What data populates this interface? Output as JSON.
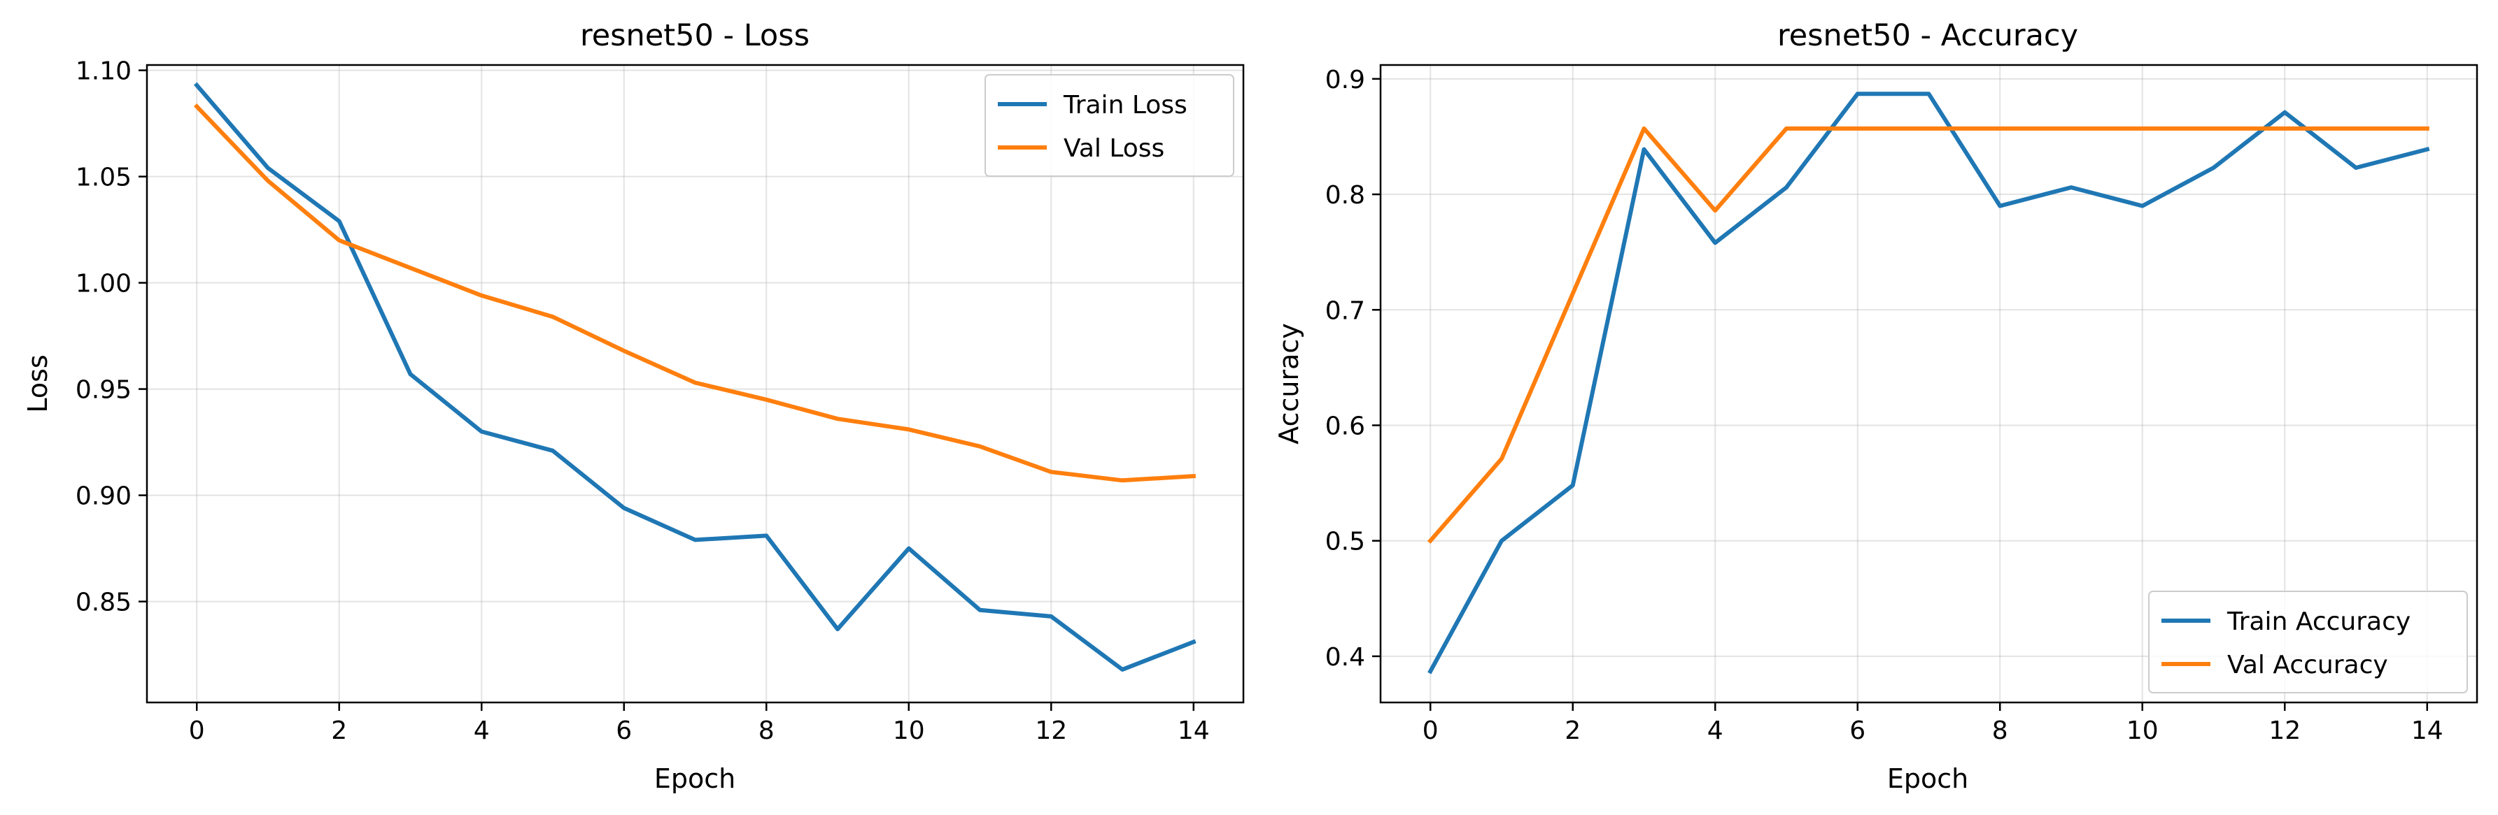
{
  "chart_data": [
    {
      "type": "line",
      "title": "resnet50 - Loss",
      "xlabel": "Epoch",
      "ylabel": "Loss",
      "x": [
        0,
        1,
        2,
        3,
        4,
        5,
        6,
        7,
        8,
        9,
        10,
        11,
        12,
        13,
        14
      ],
      "xlim": [
        -0.7,
        14.7
      ],
      "ylim": [
        0.8025,
        1.1025
      ],
      "xticks": [
        0,
        2,
        4,
        6,
        8,
        10,
        12,
        14
      ],
      "yticks": [
        0.85,
        0.9,
        0.95,
        1.0,
        1.05,
        1.1
      ],
      "ytick_labels": [
        "0.85",
        "0.90",
        "0.95",
        "1.00",
        "1.05",
        "1.10"
      ],
      "grid": true,
      "legend_position": "upper right",
      "series": [
        {
          "name": "Train Loss",
          "color": "#1f77b4",
          "values": [
            1.093,
            1.054,
            1.029,
            0.957,
            0.93,
            0.921,
            0.894,
            0.879,
            0.881,
            0.837,
            0.875,
            0.846,
            0.843,
            0.818,
            0.831
          ]
        },
        {
          "name": "Val Loss",
          "color": "#ff7f0e",
          "values": [
            1.083,
            1.048,
            1.02,
            1.007,
            0.994,
            0.984,
            0.968,
            0.953,
            0.945,
            0.936,
            0.931,
            0.923,
            0.911,
            0.907,
            0.909
          ]
        }
      ]
    },
    {
      "type": "line",
      "title": "resnet50 - Accuracy",
      "xlabel": "Epoch",
      "ylabel": "Accuracy",
      "x": [
        0,
        1,
        2,
        3,
        4,
        5,
        6,
        7,
        8,
        9,
        10,
        11,
        12,
        13,
        14
      ],
      "xlim": [
        -0.7,
        14.7
      ],
      "ylim": [
        0.36,
        0.912
      ],
      "xticks": [
        0,
        2,
        4,
        6,
        8,
        10,
        12,
        14
      ],
      "yticks": [
        0.4,
        0.5,
        0.6,
        0.7,
        0.8,
        0.9
      ],
      "ytick_labels": [
        "0.4",
        "0.5",
        "0.6",
        "0.7",
        "0.8",
        "0.9"
      ],
      "grid": true,
      "legend_position": "lower right",
      "series": [
        {
          "name": "Train Accuracy",
          "color": "#1f77b4",
          "values": [
            0.387,
            0.5,
            0.548,
            0.839,
            0.758,
            0.806,
            0.887,
            0.887,
            0.79,
            0.806,
            0.79,
            0.823,
            0.871,
            0.823,
            0.839
          ]
        },
        {
          "name": "Val Accuracy",
          "color": "#ff7f0e",
          "values": [
            0.5,
            0.571,
            0.714,
            0.857,
            0.786,
            0.857,
            0.857,
            0.857,
            0.857,
            0.857,
            0.857,
            0.857,
            0.857,
            0.857,
            0.857
          ]
        }
      ]
    }
  ]
}
